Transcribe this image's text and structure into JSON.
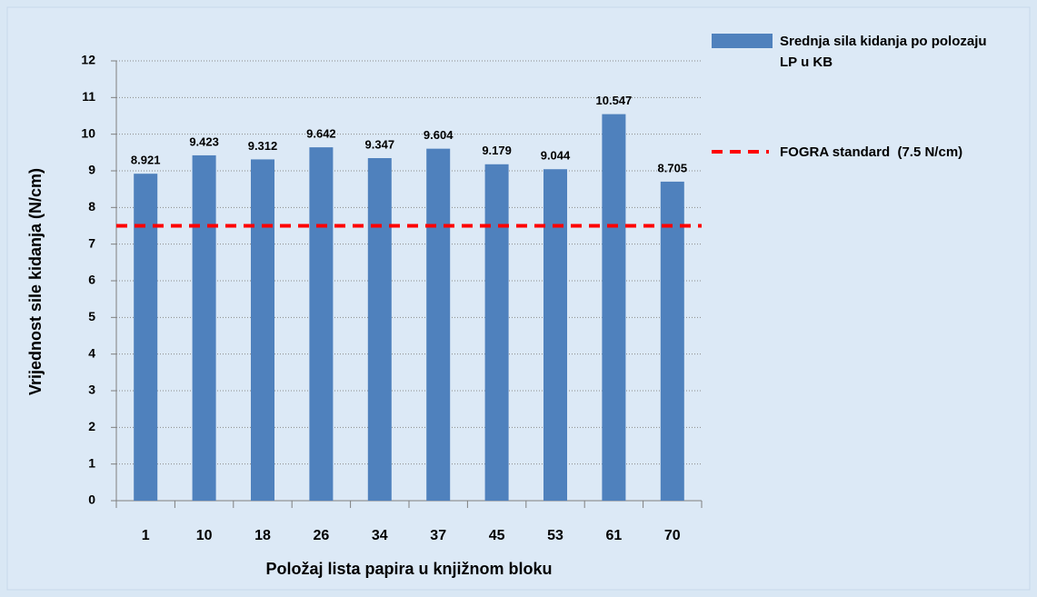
{
  "chart_data": {
    "type": "bar",
    "categories": [
      "1",
      "10",
      "18",
      "26",
      "34",
      "37",
      "45",
      "53",
      "61",
      "70"
    ],
    "series": [
      {
        "name": "Srednja sila kidanja po polozaju LP u KB",
        "color": "#4f81bd",
        "values": [
          8.921,
          9.423,
          9.312,
          9.642,
          9.347,
          9.604,
          9.179,
          9.044,
          10.547,
          8.705
        ]
      }
    ],
    "reference_lines": [
      {
        "name": "FOGRA standard  (7.5 N/cm)",
        "value": 7.5,
        "color": "#ff0000",
        "dashed": true
      }
    ],
    "x_label": "Položaj lista papira u knjižnom bloku",
    "y_label": "Vrijednost sile kidanja (N/cm)",
    "ylim": [
      0,
      12
    ],
    "yticks": [
      0,
      1,
      2,
      3,
      4,
      5,
      6,
      7,
      8,
      9,
      10,
      11,
      12
    ],
    "grid": true,
    "data_labels": true,
    "legend": "right"
  }
}
